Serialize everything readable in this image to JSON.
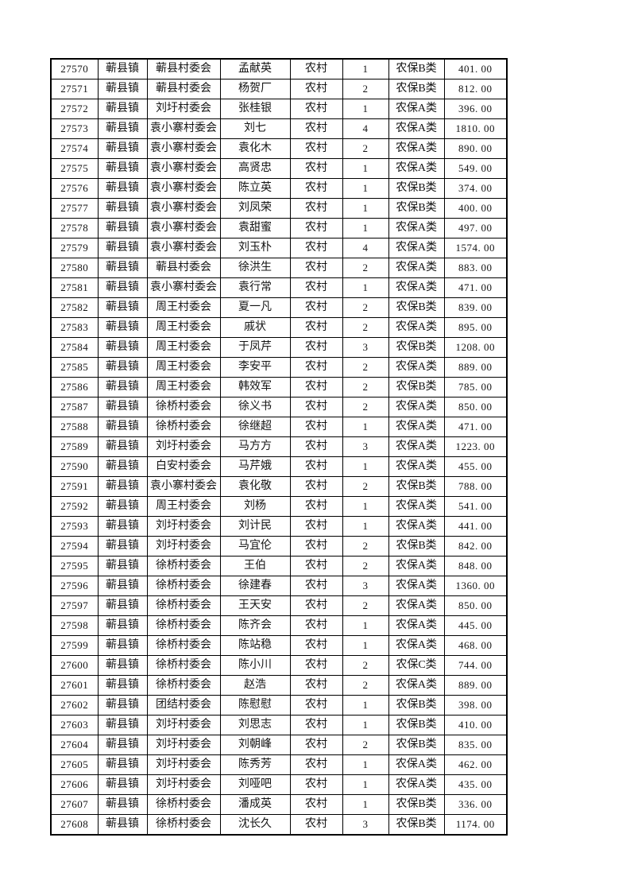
{
  "document": {
    "kind": "printed spreadsheet page (continuation, no header row visible)",
    "background_color": "#ffffff",
    "text_color": "#141414",
    "border_color": "#000000"
  },
  "table": {
    "column_keys": [
      "record-id",
      "town",
      "village-committee",
      "person-name",
      "residence-type",
      "person-count",
      "insurance-category",
      "amount"
    ],
    "rows": [
      [
        "27570",
        "蕲县镇",
        "蕲县村委会",
        "孟献英",
        "农村",
        "1",
        "农保B类",
        "401. 00"
      ],
      [
        "27571",
        "蕲县镇",
        "蕲县村委会",
        "杨贺厂",
        "农村",
        "2",
        "农保B类",
        "812. 00"
      ],
      [
        "27572",
        "蕲县镇",
        "刘圩村委会",
        "张桂银",
        "农村",
        "1",
        "农保A类",
        "396. 00"
      ],
      [
        "27573",
        "蕲县镇",
        "袁小寨村委会",
        "刘七",
        "农村",
        "4",
        "农保A类",
        "1810. 00"
      ],
      [
        "27574",
        "蕲县镇",
        "袁小寨村委会",
        "袁化木",
        "农村",
        "2",
        "农保A类",
        "890. 00"
      ],
      [
        "27575",
        "蕲县镇",
        "袁小寨村委会",
        "高贤忠",
        "农村",
        "1",
        "农保A类",
        "549. 00"
      ],
      [
        "27576",
        "蕲县镇",
        "袁小寨村委会",
        "陈立英",
        "农村",
        "1",
        "农保B类",
        "374. 00"
      ],
      [
        "27577",
        "蕲县镇",
        "袁小寨村委会",
        "刘凤荣",
        "农村",
        "1",
        "农保B类",
        "400. 00"
      ],
      [
        "27578",
        "蕲县镇",
        "袁小寨村委会",
        "袁甜蜜",
        "农村",
        "1",
        "农保A类",
        "497. 00"
      ],
      [
        "27579",
        "蕲县镇",
        "袁小寨村委会",
        "刘玉朴",
        "农村",
        "4",
        "农保A类",
        "1574. 00"
      ],
      [
        "27580",
        "蕲县镇",
        "蕲县村委会",
        "徐洪生",
        "农村",
        "2",
        "农保A类",
        "883. 00"
      ],
      [
        "27581",
        "蕲县镇",
        "袁小寨村委会",
        "袁行常",
        "农村",
        "1",
        "农保A类",
        "471. 00"
      ],
      [
        "27582",
        "蕲县镇",
        "周王村委会",
        "夏一凡",
        "农村",
        "2",
        "农保B类",
        "839. 00"
      ],
      [
        "27583",
        "蕲县镇",
        "周王村委会",
        "戚状",
        "农村",
        "2",
        "农保A类",
        "895. 00"
      ],
      [
        "27584",
        "蕲县镇",
        "周王村委会",
        "于凤芹",
        "农村",
        "3",
        "农保B类",
        "1208. 00"
      ],
      [
        "27585",
        "蕲县镇",
        "周王村委会",
        "李安平",
        "农村",
        "2",
        "农保A类",
        "889. 00"
      ],
      [
        "27586",
        "蕲县镇",
        "周王村委会",
        "韩效军",
        "农村",
        "2",
        "农保B类",
        "785. 00"
      ],
      [
        "27587",
        "蕲县镇",
        "徐桥村委会",
        "徐义书",
        "农村",
        "2",
        "农保A类",
        "850. 00"
      ],
      [
        "27588",
        "蕲县镇",
        "徐桥村委会",
        "徐继超",
        "农村",
        "1",
        "农保A类",
        "471. 00"
      ],
      [
        "27589",
        "蕲县镇",
        "刘圩村委会",
        "马方方",
        "农村",
        "3",
        "农保A类",
        "1223. 00"
      ],
      [
        "27590",
        "蕲县镇",
        "白安村委会",
        "马芹娥",
        "农村",
        "1",
        "农保A类",
        "455. 00"
      ],
      [
        "27591",
        "蕲县镇",
        "袁小寨村委会",
        "袁化敬",
        "农村",
        "2",
        "农保B类",
        "788. 00"
      ],
      [
        "27592",
        "蕲县镇",
        "周王村委会",
        "刘杨",
        "农村",
        "1",
        "农保A类",
        "541. 00"
      ],
      [
        "27593",
        "蕲县镇",
        "刘圩村委会",
        "刘计民",
        "农村",
        "1",
        "农保A类",
        "441. 00"
      ],
      [
        "27594",
        "蕲县镇",
        "刘圩村委会",
        "马宜伦",
        "农村",
        "2",
        "农保B类",
        "842. 00"
      ],
      [
        "27595",
        "蕲县镇",
        "徐桥村委会",
        "王伯",
        "农村",
        "2",
        "农保A类",
        "848. 00"
      ],
      [
        "27596",
        "蕲县镇",
        "徐桥村委会",
        "徐建春",
        "农村",
        "3",
        "农保A类",
        "1360. 00"
      ],
      [
        "27597",
        "蕲县镇",
        "徐桥村委会",
        "王天安",
        "农村",
        "2",
        "农保A类",
        "850. 00"
      ],
      [
        "27598",
        "蕲县镇",
        "徐桥村委会",
        "陈齐会",
        "农村",
        "1",
        "农保A类",
        "445. 00"
      ],
      [
        "27599",
        "蕲县镇",
        "徐桥村委会",
        "陈站稳",
        "农村",
        "1",
        "农保A类",
        "468. 00"
      ],
      [
        "27600",
        "蕲县镇",
        "徐桥村委会",
        "陈小川",
        "农村",
        "2",
        "农保C类",
        "744. 00"
      ],
      [
        "27601",
        "蕲县镇",
        "徐桥村委会",
        "赵浩",
        "农村",
        "2",
        "农保A类",
        "889. 00"
      ],
      [
        "27602",
        "蕲县镇",
        "团结村委会",
        "陈慰慰",
        "农村",
        "1",
        "农保B类",
        "398. 00"
      ],
      [
        "27603",
        "蕲县镇",
        "刘圩村委会",
        "刘思志",
        "农村",
        "1",
        "农保B类",
        "410. 00"
      ],
      [
        "27604",
        "蕲县镇",
        "刘圩村委会",
        "刘朝峰",
        "农村",
        "2",
        "农保B类",
        "835. 00"
      ],
      [
        "27605",
        "蕲县镇",
        "刘圩村委会",
        "陈秀芳",
        "农村",
        "1",
        "农保A类",
        "462. 00"
      ],
      [
        "27606",
        "蕲县镇",
        "刘圩村委会",
        "刘哑吧",
        "农村",
        "1",
        "农保A类",
        "435. 00"
      ],
      [
        "27607",
        "蕲县镇",
        "徐桥村委会",
        "潘成英",
        "农村",
        "1",
        "农保B类",
        "336. 00"
      ],
      [
        "27608",
        "蕲县镇",
        "徐桥村委会",
        "沈长久",
        "农村",
        "3",
        "农保B类",
        "1174. 00"
      ]
    ]
  }
}
